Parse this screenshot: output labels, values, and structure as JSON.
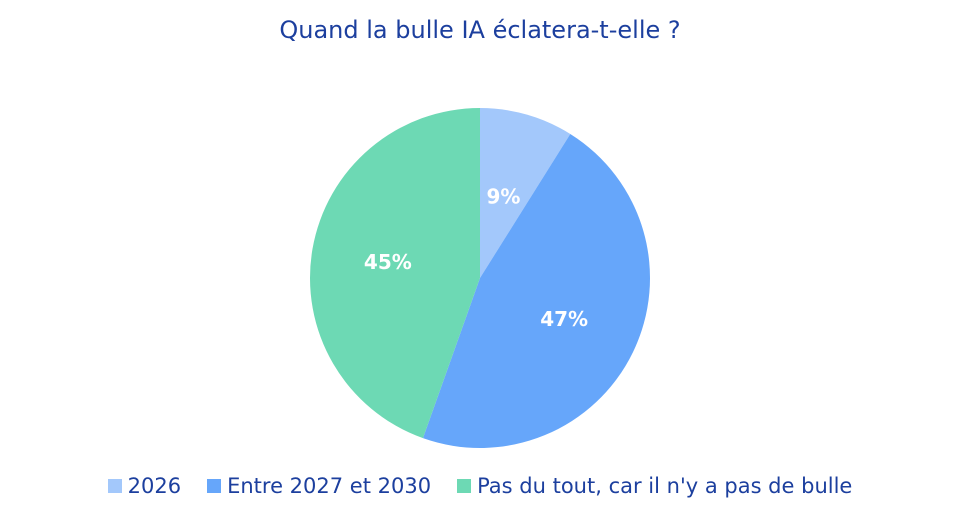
{
  "chart_data": {
    "type": "pie",
    "title": "Quand la bulle IA éclatera-t-elle ?",
    "categories": [
      "2026",
      "Entre 2027 et 2030",
      "Pas du tout, car il n'y a pas de bulle"
    ],
    "values": [
      9,
      47,
      45
    ],
    "labels": [
      "9%",
      "47%",
      "45%"
    ],
    "colors": [
      "#a3c8fb",
      "#66a6fa",
      "#6dd9b4"
    ],
    "start_angle": "top, clockwise",
    "legend": "bottom"
  }
}
